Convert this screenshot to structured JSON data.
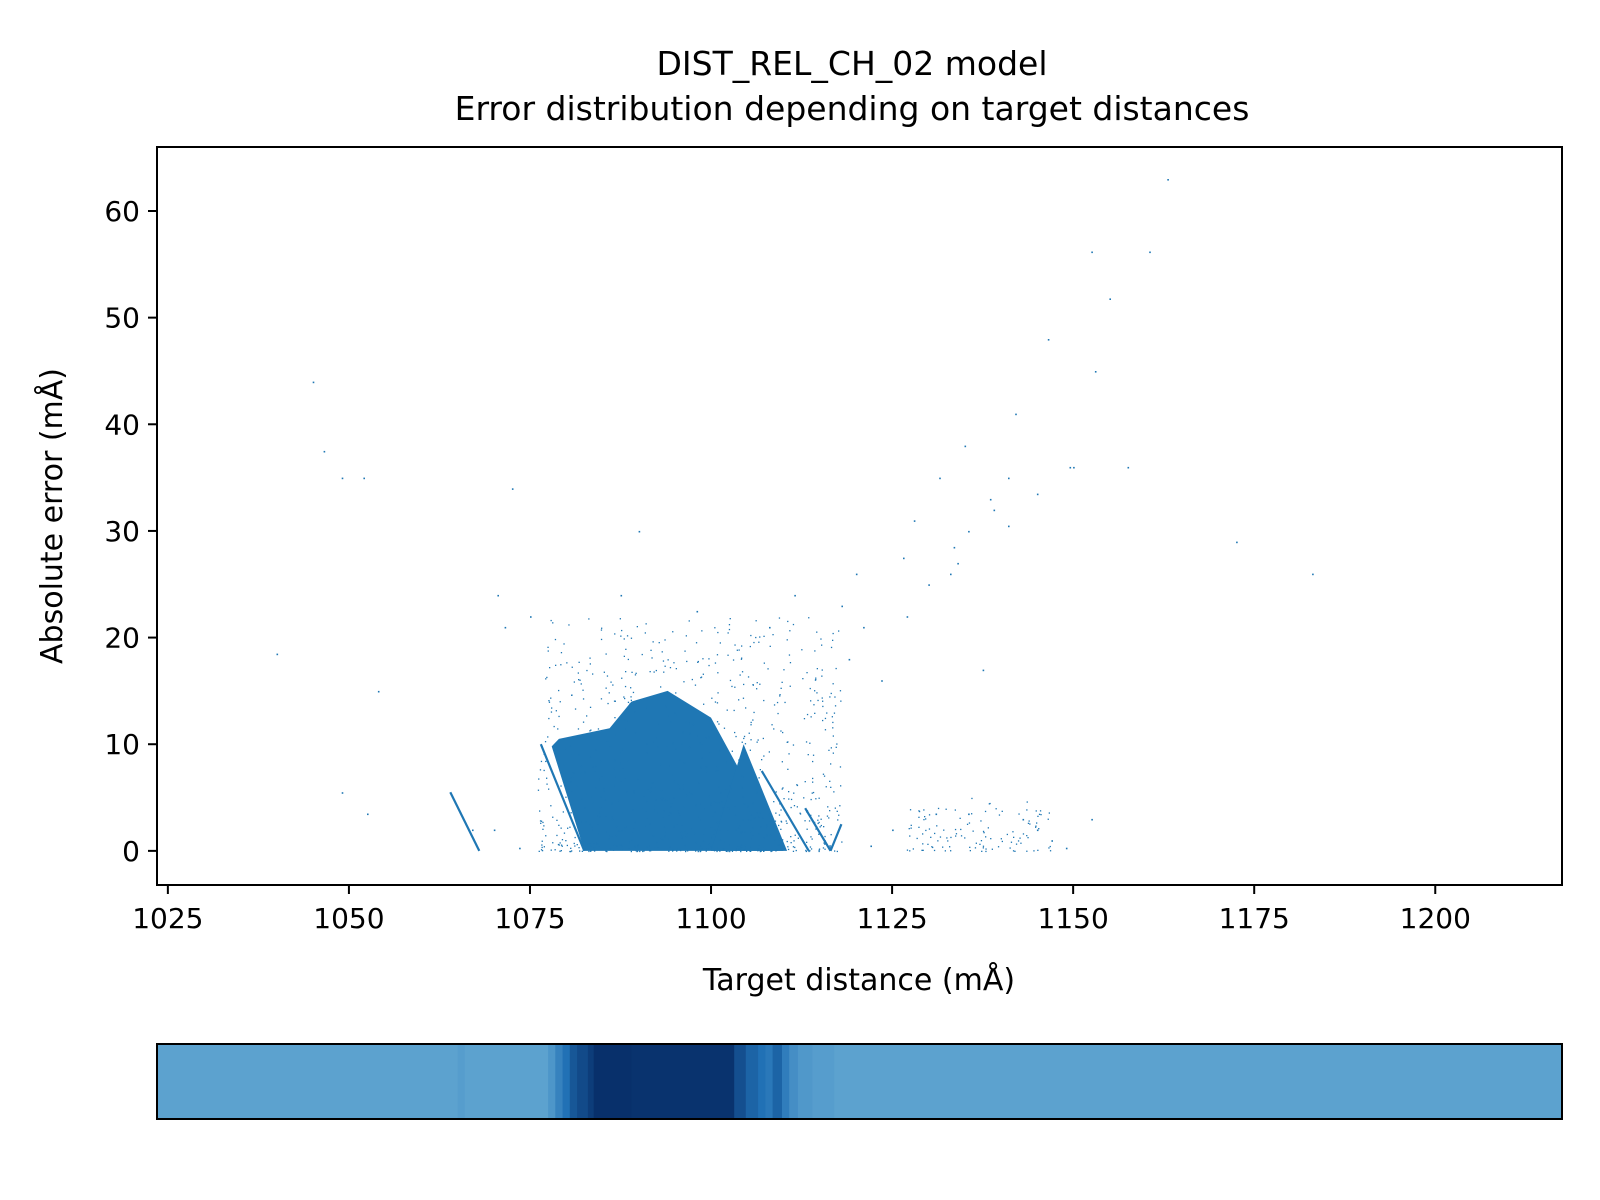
{
  "chart_data": {
    "type": "scatter",
    "title": "DIST_REL_CH_02 model",
    "subtitle": "Error distribution depending on target distances",
    "xlabel": "Target distance (mÅ)",
    "ylabel": "Absolute error (mÅ)",
    "xlim": [
      1023.5,
      1217.5
    ],
    "ylim": [
      -3.2,
      66
    ],
    "xticks": [
      "1025",
      "1050",
      "1075",
      "1100",
      "1125",
      "1150",
      "1175",
      "1200"
    ],
    "yticks": [
      "0",
      "10",
      "20",
      "30",
      "40",
      "50",
      "60"
    ],
    "grid": false,
    "marker_color": "#1f77b4",
    "dense_regions": [
      {
        "polygon": [
          [
            1082.5,
            0
          ],
          [
            1110.0,
            0
          ],
          [
            1100.0,
            12.5
          ],
          [
            1094.0,
            15.0
          ],
          [
            1089.0,
            14.0
          ],
          [
            1086.0,
            11.5
          ],
          [
            1079.0,
            10.5
          ],
          [
            1078.0,
            9.8
          ]
        ]
      },
      {
        "polygon": [
          [
            1100.0,
            0
          ],
          [
            1110.5,
            0
          ],
          [
            1104.5,
            10.0
          ]
        ]
      }
    ],
    "sparse_clusters": [
      {
        "x_range": [
          1076,
          1118
        ],
        "y_range": [
          0,
          22
        ],
        "count": 900
      },
      {
        "x_range": [
          1127,
          1147
        ],
        "y_range": [
          0,
          5
        ],
        "count": 120
      }
    ],
    "edge_lines": [
      {
        "from": [
          1064.0,
          5.5
        ],
        "to": [
          1068.0,
          0.0
        ]
      },
      {
        "from": [
          1076.5,
          10.0
        ],
        "to": [
          1082.5,
          0.0
        ]
      },
      {
        "from": [
          1107.0,
          7.5
        ],
        "to": [
          1113.5,
          0.0
        ]
      },
      {
        "from": [
          1113.0,
          4.0
        ],
        "to": [
          1116.5,
          0.0
        ]
      },
      {
        "from": [
          1116.5,
          0.0
        ],
        "to": [
          1118.0,
          2.5
        ]
      }
    ],
    "outliers": [
      [
        1163.0,
        63.0
      ],
      [
        1152.5,
        56.2
      ],
      [
        1160.5,
        56.2
      ],
      [
        1155.0,
        51.8
      ],
      [
        1146.5,
        48.0
      ],
      [
        1153.0,
        45.0
      ],
      [
        1045.0,
        44.0
      ],
      [
        1142.0,
        41.0
      ],
      [
        1135.0,
        38.0
      ],
      [
        1046.5,
        37.5
      ],
      [
        1149.5,
        36.0
      ],
      [
        1150.0,
        36.0
      ],
      [
        1157.5,
        36.0
      ],
      [
        1131.5,
        35.0
      ],
      [
        1141.0,
        35.0
      ],
      [
        1049.0,
        35.0
      ],
      [
        1052.0,
        35.0
      ],
      [
        1072.5,
        34.0
      ],
      [
        1145.0,
        33.5
      ],
      [
        1138.5,
        33.0
      ],
      [
        1139.0,
        32.0
      ],
      [
        1128.0,
        31.0
      ],
      [
        1135.5,
        30.0
      ],
      [
        1141.0,
        30.5
      ],
      [
        1090.0,
        30.0
      ],
      [
        1133.5,
        28.5
      ],
      [
        1134.0,
        27.0
      ],
      [
        1126.5,
        27.5
      ],
      [
        1172.5,
        29.0
      ],
      [
        1183.0,
        26.0
      ],
      [
        1130.0,
        25.0
      ],
      [
        1133.0,
        26.0
      ],
      [
        1120.0,
        26.0
      ],
      [
        1070.5,
        24.0
      ],
      [
        1087.5,
        24.0
      ],
      [
        1111.5,
        24.0
      ],
      [
        1118.0,
        23.0
      ],
      [
        1071.5,
        21.0
      ],
      [
        1040.0,
        18.5
      ],
      [
        1075.0,
        22.0
      ],
      [
        1098.0,
        22.5
      ],
      [
        1108.0,
        21.0
      ],
      [
        1121.0,
        21.0
      ],
      [
        1127.0,
        22.0
      ],
      [
        1119.0,
        18.0
      ],
      [
        1137.5,
        17.0
      ],
      [
        1054.0,
        15.0
      ],
      [
        1123.5,
        16.0
      ],
      [
        1049.0,
        5.5
      ],
      [
        1052.5,
        3.5
      ],
      [
        1067.0,
        2.0
      ],
      [
        1070.0,
        2.0
      ],
      [
        1073.5,
        0.3
      ],
      [
        1125.0,
        2.0
      ],
      [
        1131.0,
        3.5
      ],
      [
        1135.5,
        3.5
      ],
      [
        1143.0,
        3.0
      ],
      [
        1145.0,
        2.0
      ],
      [
        1149.0,
        0.3
      ],
      [
        1152.5,
        3.0
      ],
      [
        1122.0,
        0.5
      ],
      [
        1147.0,
        1.0
      ]
    ],
    "strip": {
      "xlim": [
        1023.5,
        1217.5
      ],
      "colormap": "Blues",
      "bands": [
        {
          "x0": 1023.5,
          "x1": 1065.0,
          "level": 0.55
        },
        {
          "x0": 1065.0,
          "x1": 1066.0,
          "level": 0.57
        },
        {
          "x0": 1066.0,
          "x1": 1077.5,
          "level": 0.55
        },
        {
          "x0": 1077.5,
          "x1": 1078.5,
          "level": 0.6
        },
        {
          "x0": 1078.5,
          "x1": 1079.5,
          "level": 0.68
        },
        {
          "x0": 1079.5,
          "x1": 1080.5,
          "level": 0.75
        },
        {
          "x0": 1080.5,
          "x1": 1081.5,
          "level": 0.85
        },
        {
          "x0": 1081.5,
          "x1": 1083.0,
          "level": 0.9
        },
        {
          "x0": 1083.0,
          "x1": 1083.8,
          "level": 0.95
        },
        {
          "x0": 1083.8,
          "x1": 1089.0,
          "level": 1.0
        },
        {
          "x0": 1089.0,
          "x1": 1103.2,
          "level": 0.99
        },
        {
          "x0": 1103.2,
          "x1": 1104.8,
          "level": 0.88
        },
        {
          "x0": 1104.8,
          "x1": 1106.5,
          "level": 0.8
        },
        {
          "x0": 1106.5,
          "x1": 1107.5,
          "level": 0.75
        },
        {
          "x0": 1107.5,
          "x1": 1108.5,
          "level": 0.72
        },
        {
          "x0": 1108.5,
          "x1": 1109.8,
          "level": 0.8
        },
        {
          "x0": 1109.8,
          "x1": 1110.8,
          "level": 0.7
        },
        {
          "x0": 1110.8,
          "x1": 1112.0,
          "level": 0.63
        },
        {
          "x0": 1112.0,
          "x1": 1114.0,
          "level": 0.59
        },
        {
          "x0": 1114.0,
          "x1": 1117.0,
          "level": 0.57
        },
        {
          "x0": 1117.0,
          "x1": 1217.5,
          "level": 0.55
        }
      ]
    }
  }
}
